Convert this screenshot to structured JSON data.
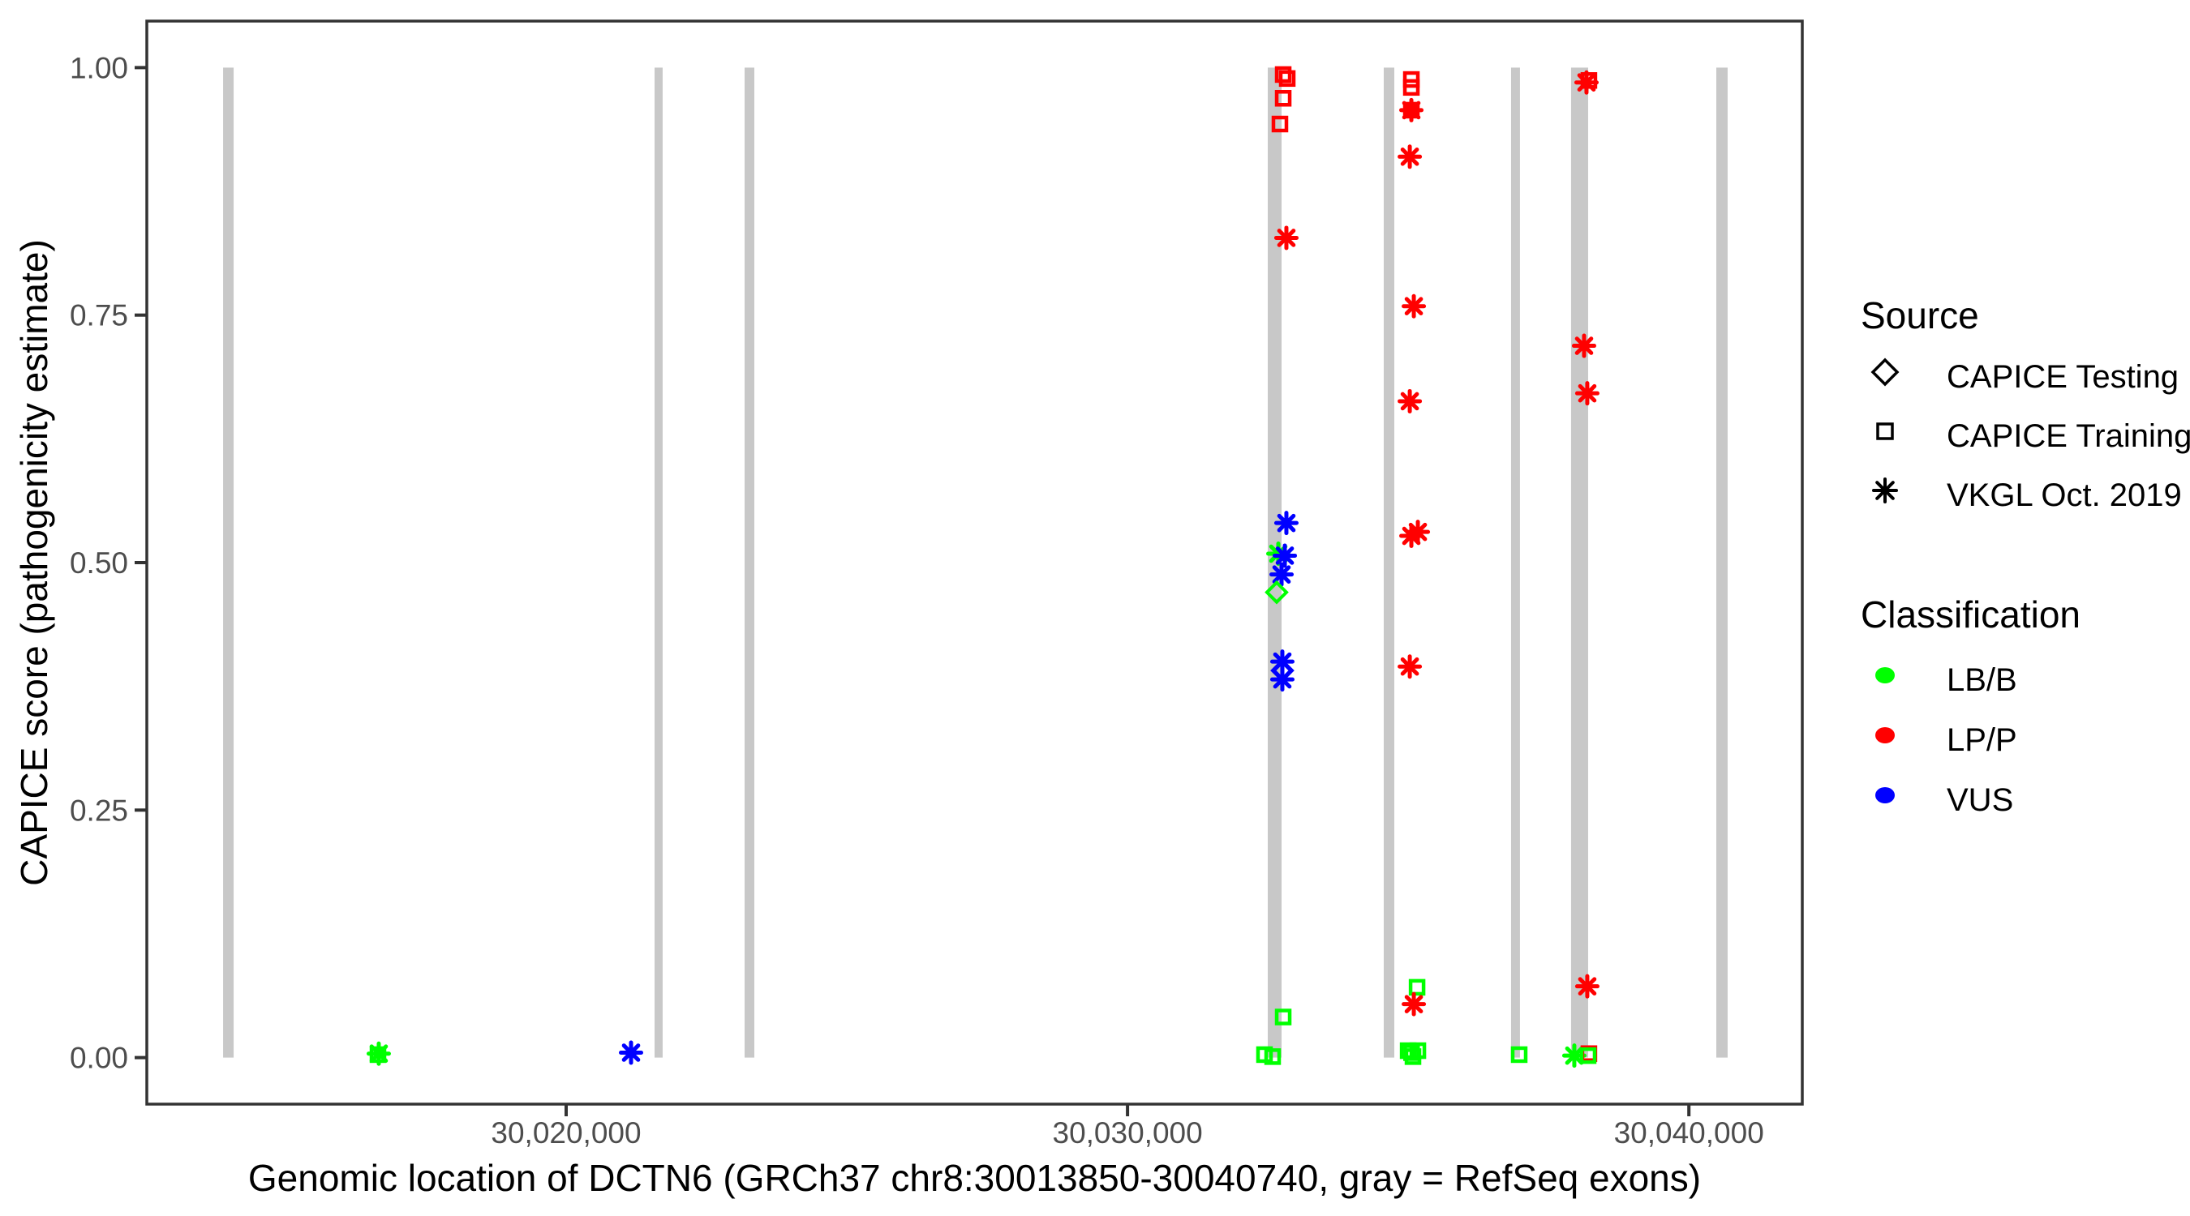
{
  "figure_type": "ggplot-style scatter plot",
  "colors": {
    "lbb_green": "#00FF00",
    "lpp_red": "#FF0000",
    "vus_blue": "#0000FF",
    "exon_gray": "#C8C8C8",
    "tick_text_gray": "#4D4D4D",
    "panel_border": "#333333"
  },
  "legend": {
    "source": {
      "title": "Source",
      "items": [
        {
          "label": "CAPICE Testing",
          "shape": "diamond"
        },
        {
          "label": "CAPICE Training",
          "shape": "square"
        },
        {
          "label": "VKGL Oct. 2019",
          "shape": "asterisk"
        }
      ]
    },
    "classification": {
      "title": "Classification",
      "items": [
        {
          "label": "LB/B",
          "color": "#00FF00"
        },
        {
          "label": "LP/P",
          "color": "#FF0000"
        },
        {
          "label": "VUS",
          "color": "#0000FF"
        }
      ]
    }
  },
  "chart_data": {
    "type": "scatter",
    "title": "",
    "xlabel": "Genomic location of DCTN6 (GRCh37 chr8:30013850-30040740, gray = RefSeq exons)",
    "ylabel": "CAPICE score (pathogenicity estimate)",
    "x_domain": [
      30012530,
      30042020
    ],
    "y_domain": [
      -0.047,
      1.047
    ],
    "grid": "off",
    "legend_position": "right",
    "x_ticks": [
      {
        "v": 30020000,
        "label": "30,020,000"
      },
      {
        "v": 30030000,
        "label": "30,030,000"
      },
      {
        "v": 30040000,
        "label": "30,040,000"
      }
    ],
    "y_ticks": [
      {
        "v": 0.0,
        "label": "0.00"
      },
      {
        "v": 0.25,
        "label": "0.25"
      },
      {
        "v": 0.5,
        "label": "0.50"
      },
      {
        "v": 0.75,
        "label": "0.75"
      },
      {
        "v": 1.0,
        "label": "1.00"
      }
    ],
    "exons_note": "gray vertical bars = RefSeq exons, drawn from score 0 to 1",
    "exons": [
      {
        "start": 30013889,
        "end": 30014077
      },
      {
        "start": 30021575,
        "end": 30021719
      },
      {
        "start": 30023179,
        "end": 30023352
      },
      {
        "start": 30032498,
        "end": 30032744
      },
      {
        "start": 30034564,
        "end": 30034752
      },
      {
        "start": 30036832,
        "end": 30036991
      },
      {
        "start": 30037901,
        "end": 30038205
      },
      {
        "start": 30040488,
        "end": 30040690
      }
    ],
    "source_shapes": {
      "CAPICE Testing": "diamond",
      "CAPICE Training": "square",
      "VKGL Oct. 2019": "asterisk"
    },
    "classification_colors": {
      "LB/B": "#00FF00",
      "LP/P": "#FF0000",
      "VUS": "#0000FF"
    },
    "points": [
      {
        "bp": 30016648,
        "score": 0.003,
        "source": "CAPICE Training",
        "classification": "LB/B"
      },
      {
        "bp": 30016662,
        "score": 0.004,
        "source": "VKGL Oct. 2019",
        "classification": "LB/B"
      },
      {
        "bp": 30021156,
        "score": 0.005,
        "source": "VKGL Oct. 2019",
        "classification": "VUS"
      },
      {
        "bp": 30032773,
        "score": 0.993,
        "source": "CAPICE Training",
        "classification": "LP/P"
      },
      {
        "bp": 30032845,
        "score": 0.989,
        "source": "CAPICE Training",
        "classification": "LP/P"
      },
      {
        "bp": 30032773,
        "score": 0.969,
        "source": "CAPICE Training",
        "classification": "LP/P"
      },
      {
        "bp": 30032715,
        "score": 0.943,
        "source": "CAPICE Training",
        "classification": "LP/P"
      },
      {
        "bp": 30032830,
        "score": 0.828,
        "source": "VKGL Oct. 2019",
        "classification": "LP/P"
      },
      {
        "bp": 30032830,
        "score": 0.54,
        "source": "VKGL Oct. 2019",
        "classification": "VUS"
      },
      {
        "bp": 30032686,
        "score": 0.509,
        "source": "VKGL Oct. 2019",
        "classification": "LB/B"
      },
      {
        "bp": 30032802,
        "score": 0.507,
        "source": "VKGL Oct. 2019",
        "classification": "VUS"
      },
      {
        "bp": 30032744,
        "score": 0.488,
        "source": "VKGL Oct. 2019",
        "classification": "VUS"
      },
      {
        "bp": 30032657,
        "score": 0.47,
        "source": "CAPICE Testing",
        "classification": "LB/B"
      },
      {
        "bp": 30032758,
        "score": 0.4,
        "source": "VKGL Oct. 2019",
        "classification": "VUS"
      },
      {
        "bp": 30032758,
        "score": 0.391,
        "source": "CAPICE Testing",
        "classification": "VUS"
      },
      {
        "bp": 30032758,
        "score": 0.382,
        "source": "VKGL Oct. 2019",
        "classification": "VUS"
      },
      {
        "bp": 30032773,
        "score": 0.041,
        "source": "CAPICE Training",
        "classification": "LB/B"
      },
      {
        "bp": 30032440,
        "score": 0.003,
        "source": "CAPICE Training",
        "classification": "LB/B"
      },
      {
        "bp": 30032585,
        "score": 0.001,
        "source": "CAPICE Training",
        "classification": "LB/B"
      },
      {
        "bp": 30035056,
        "score": 0.988,
        "source": "CAPICE Training",
        "classification": "LP/P"
      },
      {
        "bp": 30035056,
        "score": 0.98,
        "source": "CAPICE Training",
        "classification": "LP/P"
      },
      {
        "bp": 30035056,
        "score": 0.957,
        "source": "CAPICE Training",
        "classification": "LP/P"
      },
      {
        "bp": 30035056,
        "score": 0.957,
        "source": "VKGL Oct. 2019",
        "classification": "LP/P"
      },
      {
        "bp": 30035028,
        "score": 0.91,
        "source": "VKGL Oct. 2019",
        "classification": "LP/P"
      },
      {
        "bp": 30035100,
        "score": 0.759,
        "source": "VKGL Oct. 2019",
        "classification": "LP/P"
      },
      {
        "bp": 30035028,
        "score": 0.663,
        "source": "VKGL Oct. 2019",
        "classification": "LP/P"
      },
      {
        "bp": 30035172,
        "score": 0.531,
        "source": "VKGL Oct. 2019",
        "classification": "LP/P"
      },
      {
        "bp": 30035056,
        "score": 0.527,
        "source": "VKGL Oct. 2019",
        "classification": "LP/P"
      },
      {
        "bp": 30035028,
        "score": 0.395,
        "source": "VKGL Oct. 2019",
        "classification": "LP/P"
      },
      {
        "bp": 30035158,
        "score": 0.071,
        "source": "CAPICE Training",
        "classification": "LB/B"
      },
      {
        "bp": 30035100,
        "score": 0.054,
        "source": "VKGL Oct. 2019",
        "classification": "LP/P"
      },
      {
        "bp": 30034999,
        "score": 0.007,
        "source": "CAPICE Training",
        "classification": "LB/B"
      },
      {
        "bp": 30035172,
        "score": 0.007,
        "source": "CAPICE Training",
        "classification": "LB/B"
      },
      {
        "bp": 30035060,
        "score": 0.005,
        "source": "CAPICE Training",
        "classification": "LB/B"
      },
      {
        "bp": 30035085,
        "score": 0.001,
        "source": "CAPICE Training",
        "classification": "LB/B"
      },
      {
        "bp": 30036977,
        "score": 0.003,
        "source": "CAPICE Training",
        "classification": "LB/B"
      },
      {
        "bp": 30038219,
        "score": 0.987,
        "source": "CAPICE Training",
        "classification": "LP/P"
      },
      {
        "bp": 30038176,
        "score": 0.985,
        "source": "VKGL Oct. 2019",
        "classification": "LP/P"
      },
      {
        "bp": 30038133,
        "score": 0.719,
        "source": "VKGL Oct. 2019",
        "classification": "LP/P"
      },
      {
        "bp": 30038190,
        "score": 0.671,
        "source": "VKGL Oct. 2019",
        "classification": "LP/P"
      },
      {
        "bp": 30038190,
        "score": 0.072,
        "source": "VKGL Oct. 2019",
        "classification": "LP/P"
      },
      {
        "bp": 30037959,
        "score": 0.002,
        "source": "VKGL Oct. 2019",
        "classification": "LB/B"
      },
      {
        "bp": 30038219,
        "score": 0.004,
        "source": "CAPICE Training",
        "classification": "LP/P"
      },
      {
        "bp": 30038205,
        "score": 0.002,
        "source": "CAPICE Training",
        "classification": "LB/B"
      }
    ]
  }
}
